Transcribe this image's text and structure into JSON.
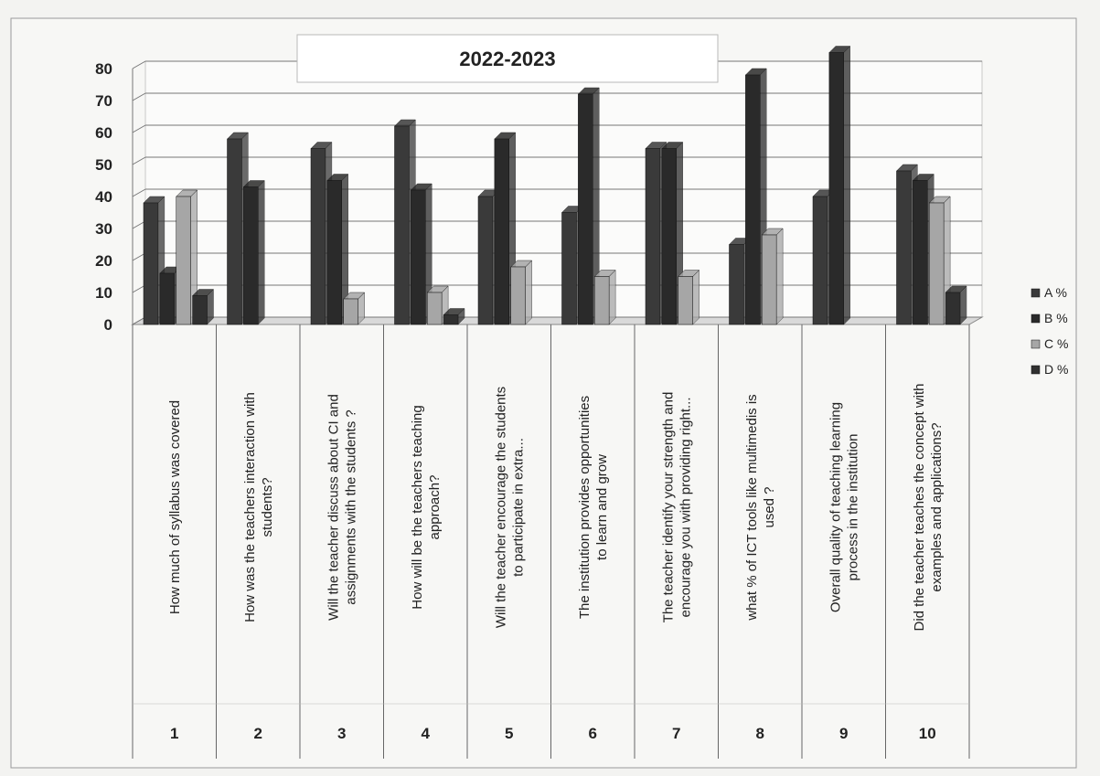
{
  "chart_data": {
    "type": "bar",
    "title": "2022-2023",
    "ylim": [
      0,
      80
    ],
    "yticks": [
      0,
      10,
      20,
      30,
      40,
      50,
      60,
      70,
      80
    ],
    "grid": true,
    "legend_position": "right",
    "categories": [
      "1",
      "2",
      "3",
      "4",
      "5",
      "6",
      "7",
      "8",
      "9",
      "10"
    ],
    "questions": [
      "How  much of syllabus was covered",
      "How was the teachers interaction with students?",
      "Will the teacher discuss about CI and assignments with the students ?",
      "How will be the teachers teaching approach?",
      "Will the teacher encourage  the students to participate in extra...",
      "The institution provides opportunities to learn and grow",
      "The teacher identify your strength and encourage you with providing right...",
      "what % of ICT tools like multimedis is used ?",
      "Overall quality of teaching learning process in the institution",
      "Did the teacher teaches the concept with examples and applications?"
    ],
    "series": [
      {
        "name": "A %",
        "color": "#3a3a3a",
        "values": [
          38,
          58,
          55,
          62,
          40,
          35,
          55,
          25,
          40,
          48
        ]
      },
      {
        "name": "B %",
        "color": "#2a2a2a",
        "values": [
          16,
          43,
          45,
          42,
          58,
          72,
          55,
          78,
          85,
          45
        ]
      },
      {
        "name": "C %",
        "color": "#a6a6a6",
        "values": [
          40,
          0,
          8,
          10,
          18,
          15,
          15,
          28,
          0,
          38
        ]
      },
      {
        "name": "D %",
        "color": "#303030",
        "values": [
          9,
          0,
          0,
          3,
          0,
          0,
          0,
          0,
          0,
          10
        ]
      }
    ]
  }
}
